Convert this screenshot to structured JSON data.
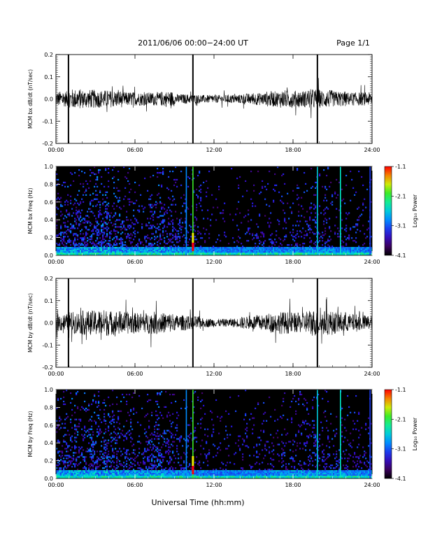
{
  "page": {
    "title": "2011/06/06  00:00−24:00 UT",
    "page_label": "Page 1/1",
    "xlabel": "Universal Time (hh:mm)"
  },
  "chart_data": [
    {
      "type": "line",
      "ylabel": "MCM bx dB/dt (nT/sec)",
      "x_ticks": [
        "00:00",
        "06:00",
        "12:00",
        "18:00",
        "24:00"
      ],
      "xlim_hours": [
        0,
        24
      ],
      "ylim": [
        -0.2,
        0.2
      ],
      "y_ticks": [
        "-0.2",
        "-0.1",
        "0.0",
        "0.1",
        "0.2"
      ],
      "noise_envelope": [
        0.035,
        0.045,
        0.042,
        0.04,
        0.038,
        0.032,
        0.03,
        0.03,
        0.035,
        0.022,
        0.02,
        0.018,
        0.018,
        0.02,
        0.025,
        0.028,
        0.035,
        0.04,
        0.038,
        0.045,
        0.04,
        0.035,
        0.03,
        0.03
      ],
      "spikes_hours": [
        0.95,
        10.4,
        19.85
      ]
    },
    {
      "type": "heatmap",
      "ylabel": "MCM bx Freq (Hz)",
      "x_ticks": [
        "00:00",
        "06:00",
        "12:00",
        "18:00",
        "24:00"
      ],
      "ylim": [
        0.0,
        1.0
      ],
      "y_ticks": [
        "0.0",
        "0.2",
        "0.4",
        "0.6",
        "0.8",
        "1.0"
      ],
      "colorbar_label": "Log₁₀ Power",
      "colorbar_ticks": [
        "-1.1",
        "-2.1",
        "-3.1",
        "-4.1"
      ],
      "clim": [
        -4.1,
        -1.1
      ],
      "activity_by_hour": [
        0.5,
        0.55,
        0.6,
        0.7,
        0.55,
        0.4,
        0.35,
        0.55,
        0.45,
        0.35,
        0.3,
        0.15,
        0.1,
        0.1,
        0.15,
        0.2,
        0.2,
        0.25,
        0.3,
        0.35,
        0.3,
        0.25,
        0.25,
        0.2
      ],
      "vertical_lines": [
        {
          "hour": 9.9,
          "level": 0.4
        },
        {
          "hour": 10.4,
          "level": 0.7
        },
        {
          "hour": 19.85,
          "level": 0.5
        },
        {
          "hour": 21.6,
          "level": 0.55
        },
        {
          "hour": 23.85,
          "level": 0.3
        }
      ]
    },
    {
      "type": "line",
      "ylabel": "MCM by dB/dt (nT/sec)",
      "x_ticks": [
        "00:00",
        "06:00",
        "12:00",
        "18:00",
        "24:00"
      ],
      "xlim_hours": [
        0,
        24
      ],
      "ylim": [
        -0.2,
        0.2
      ],
      "y_ticks": [
        "-0.2",
        "-0.1",
        "0.0",
        "0.1",
        "0.2"
      ],
      "noise_envelope": [
        0.04,
        0.05,
        0.055,
        0.06,
        0.055,
        0.05,
        0.045,
        0.05,
        0.045,
        0.035,
        0.03,
        0.02,
        0.018,
        0.02,
        0.028,
        0.035,
        0.045,
        0.05,
        0.045,
        0.06,
        0.055,
        0.05,
        0.04,
        0.035
      ],
      "spikes_hours": [
        0.95,
        10.4,
        19.85
      ]
    },
    {
      "type": "heatmap",
      "ylabel": "MCM by Freq (Hz)",
      "x_ticks": [
        "00:00",
        "06:00",
        "12:00",
        "18:00",
        "24:00"
      ],
      "ylim": [
        0.0,
        1.0
      ],
      "y_ticks": [
        "0.0",
        "0.2",
        "0.4",
        "0.6",
        "0.8",
        "1.0"
      ],
      "colorbar_label": "Log₁₀ Power",
      "colorbar_ticks": [
        "-1.1",
        "-2.1",
        "-3.1",
        "-4.1"
      ],
      "clim": [
        -4.1,
        -1.1
      ],
      "activity_by_hour": [
        0.5,
        0.55,
        0.6,
        0.65,
        0.55,
        0.45,
        0.4,
        0.55,
        0.45,
        0.35,
        0.3,
        0.15,
        0.12,
        0.12,
        0.15,
        0.2,
        0.22,
        0.25,
        0.3,
        0.35,
        0.3,
        0.28,
        0.25,
        0.22
      ],
      "vertical_lines": [
        {
          "hour": 9.9,
          "level": 0.4
        },
        {
          "hour": 10.4,
          "level": 0.7
        },
        {
          "hour": 19.85,
          "level": 0.5
        },
        {
          "hour": 21.6,
          "level": 0.55
        },
        {
          "hour": 23.85,
          "level": 0.3
        }
      ]
    }
  ],
  "colors": {
    "trace": "#000000",
    "background": "#ffffff",
    "spectrogram_bg": "#000000"
  }
}
